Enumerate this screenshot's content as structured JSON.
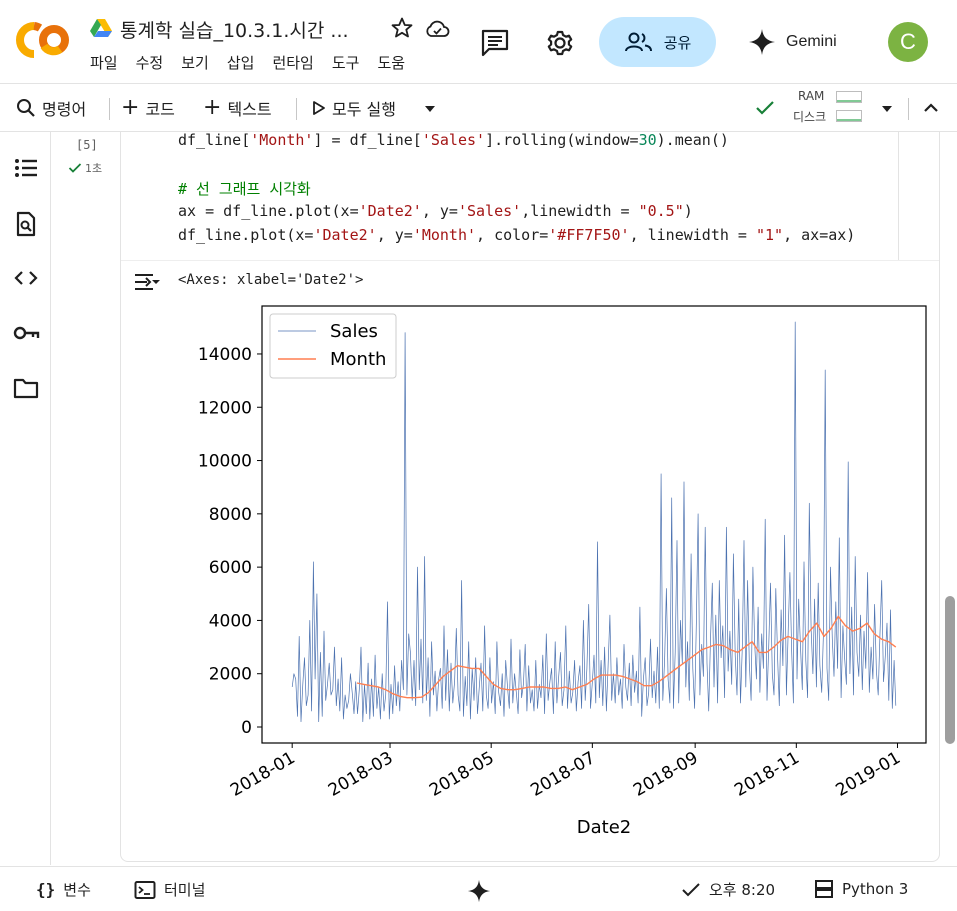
{
  "header": {
    "doc_title": "통계학 실습_10.3.1.시간 ...",
    "menu": [
      "파일",
      "수정",
      "보기",
      "삽입",
      "런타임",
      "도구",
      "도움"
    ],
    "share_label": "공유",
    "gemini_label": "Gemini",
    "avatar_letter": "C"
  },
  "toolbar": {
    "search_label": "명령어",
    "add_code_label": "코드",
    "add_text_label": "텍스트",
    "run_all_label": "모두 실행",
    "ram_label": "RAM",
    "disk_label": "디스크"
  },
  "cell": {
    "exec_count": "[5]",
    "exec_time": "1초",
    "output_text": "<Axes: xlabel='Date2'>"
  },
  "statusbar": {
    "variables_label": "변수",
    "terminal_label": "터미널",
    "time_label": "오후 8:20",
    "runtime_label": "Python 3"
  },
  "colors": {
    "sales_line": "#4c72b0",
    "month_line": "#FF7F50",
    "share_bg": "#c2e7ff",
    "avatar_bg": "#7cb342"
  },
  "chart_data": {
    "type": "line",
    "title": "",
    "xlabel": "Date2",
    "ylabel": "",
    "x_range": [
      "2018-01-01",
      "2018-12-31"
    ],
    "ylim": [
      -600,
      15800
    ],
    "x_ticks": [
      "2018-01",
      "2018-03",
      "2018-05",
      "2018-07",
      "2018-09",
      "2018-11",
      "2019-01"
    ],
    "y_ticks": [
      0,
      2000,
      4000,
      6000,
      8000,
      10000,
      12000,
      14000
    ],
    "legend": "top-left",
    "series": [
      {
        "name": "Sales",
        "color": "#4c72b0",
        "linewidth": 0.5,
        "values": [
          1500,
          2000,
          1800,
          400,
          3400,
          200,
          1600,
          2600,
          800,
          1200,
          4000,
          600,
          6200,
          1800,
          5000,
          200,
          2800,
          400,
          3600,
          1000,
          1600,
          2400,
          1200,
          1400,
          3000,
          800,
          1800,
          600,
          2600,
          300,
          1200,
          700,
          1000,
          2000,
          1300,
          500,
          1700,
          500,
          1400,
          3000,
          200,
          1600,
          500,
          2400,
          300,
          1800,
          400,
          2700,
          700,
          1500,
          300,
          2000,
          600,
          1200,
          4700,
          300,
          1600,
          500,
          2300,
          800,
          1700,
          600,
          2500,
          1400,
          14800,
          1200,
          3500,
          2800,
          1000,
          2500,
          800,
          6000,
          1400,
          3300,
          900,
          6400,
          1000,
          2600,
          400,
          3200,
          1200,
          2100,
          600,
          1800,
          2200,
          700,
          3800,
          1000,
          2900,
          600,
          2400,
          900,
          1700,
          3700,
          1200,
          600,
          5500,
          400,
          1900,
          800,
          3200,
          300,
          2200,
          1000,
          2600,
          500,
          1500,
          2400,
          600,
          3800,
          1200,
          700,
          2600,
          900,
          1700,
          500,
          3200,
          1300,
          800,
          2000,
          400,
          2500,
          1500,
          700,
          3300,
          900,
          2000,
          1300,
          500,
          2900,
          1100,
          1600,
          3100,
          600,
          2300,
          900,
          1400,
          600,
          2500,
          700,
          1600,
          1100,
          2700,
          500,
          3500,
          1000,
          1700,
          2200,
          500,
          3200,
          900,
          1900,
          2800,
          800,
          1400,
          3800,
          700,
          2100,
          900,
          1300,
          2500,
          600,
          1700,
          2300,
          700,
          4000,
          1000,
          2200,
          4600,
          700,
          1600,
          2700,
          900,
          6950,
          1100,
          2500,
          800,
          3000,
          600,
          2300,
          4200,
          1000,
          2000,
          900,
          2600,
          1200,
          1800,
          700,
          3100,
          1500,
          1000,
          2400,
          800,
          2700,
          1300,
          2100,
          900,
          4500,
          400,
          1800,
          2600,
          800,
          1300,
          3300,
          1100,
          2100,
          900,
          3000,
          700,
          9500,
          1000,
          2500,
          5200,
          1800,
          900,
          8600,
          700,
          2800,
          7000,
          900,
          4000,
          2400,
          9200,
          1500,
          3200,
          1000,
          6500,
          2200,
          700,
          4000,
          8000,
          1200,
          3100,
          1900,
          7500,
          2400,
          600,
          3300,
          5400,
          1500,
          4200,
          900,
          5500,
          2600,
          3800,
          1100,
          7500,
          2100,
          3600,
          1600,
          6500,
          2700,
          1200,
          4800,
          900,
          3000,
          7000,
          1500,
          5500,
          2400,
          1000,
          6000,
          3200,
          1800,
          4500,
          1300,
          3500,
          2200,
          7800,
          1000,
          3000,
          5400,
          2000,
          1200,
          5200,
          2600,
          800,
          4400,
          2300,
          7200,
          1200,
          3600,
          5800,
          2800,
          900,
          15200,
          1800,
          4800,
          3000,
          1400,
          6200,
          2500,
          1100,
          8400,
          3700,
          2000,
          4800,
          1500,
          5400,
          2300,
          1300,
          3600,
          13400,
          2200,
          1000,
          6000,
          3300,
          1900,
          4700,
          2200,
          7100,
          1100,
          3800,
          2600,
          1600,
          9950,
          2000,
          4500,
          1200,
          6400,
          2800,
          1900,
          4200,
          1400,
          3600,
          2200,
          5800,
          1300,
          3000,
          1800,
          4600,
          2100,
          1200,
          3400,
          5500,
          1700,
          2600,
          3900,
          1000,
          4400,
          700,
          2500,
          800
        ]
      },
      {
        "name": "Month",
        "color": "#FF7F50",
        "linewidth": 1,
        "values": [
          1650,
          1600,
          1550,
          1500,
          1400,
          1250,
          1150,
          1100,
          1100,
          1120,
          1300,
          1600,
          1900,
          2100,
          2300,
          2250,
          2200,
          2200,
          1900,
          1600,
          1450,
          1400,
          1400,
          1450,
          1500,
          1500,
          1500,
          1450,
          1450,
          1500,
          1400,
          1500,
          1600,
          1800,
          1950,
          1950,
          1950,
          1900,
          1800,
          1700,
          1550,
          1550,
          1700,
          1900,
          2100,
          2300,
          2500,
          2700,
          2900,
          3000,
          3100,
          3050,
          2900,
          2800,
          3000,
          3200,
          2800,
          2800,
          3000,
          3250,
          3400,
          3300,
          3200,
          3600,
          3900,
          3400,
          3700,
          4150,
          3800,
          3600,
          3700,
          3900,
          3500,
          3300,
          3200,
          3000
        ]
      }
    ]
  }
}
